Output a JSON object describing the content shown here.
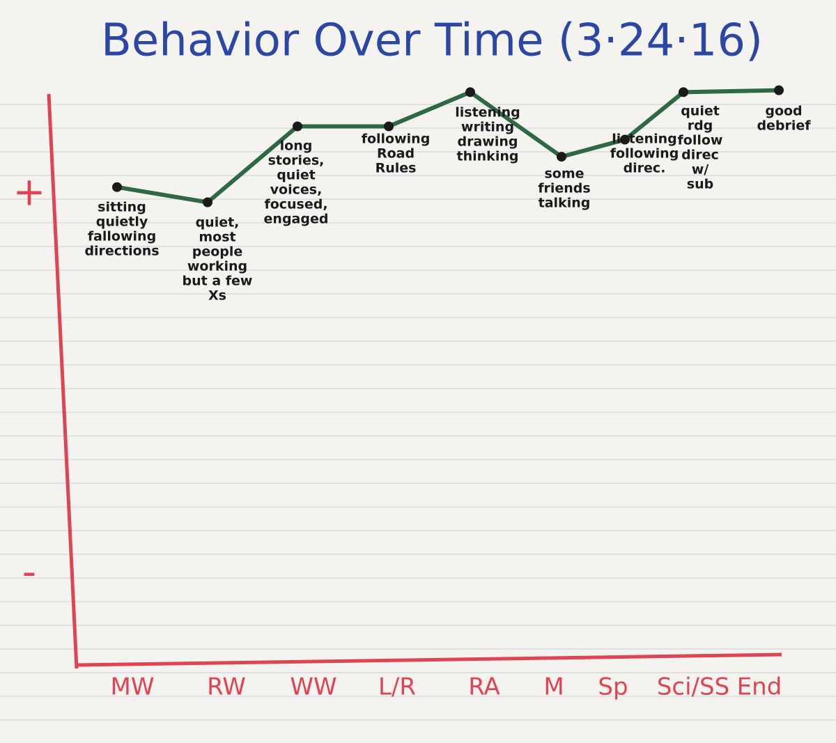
{
  "chart_data": {
    "type": "line",
    "title": "Behavior Over Time (3·24·16)",
    "categories": [
      "MW",
      "RW",
      "WW",
      "L/R",
      "RA",
      "M",
      "Sp",
      "Sci/SS",
      "End"
    ],
    "values": [
      1.04,
      0.96,
      1.36,
      1.36,
      1.54,
      1.2,
      1.29,
      1.54,
      1.55
    ],
    "color": "#2d6a43",
    "annotations": [
      [
        "sitting",
        "quietly",
        "fallowing",
        "directions"
      ],
      [
        "quiet,",
        "most",
        "people",
        "working",
        "but a few",
        "Xs"
      ],
      [
        "long",
        "stories,",
        "quiet",
        "voices,",
        "focused,",
        "engaged"
      ],
      [
        "following",
        "Road",
        "Rules"
      ],
      [
        "listening",
        "writing",
        "drawing",
        "thinking"
      ],
      [
        "some",
        "friends",
        "talking"
      ],
      [
        "listening",
        "following",
        "direc."
      ],
      [
        "quiet",
        "rdg",
        "follow",
        "direc",
        "w/",
        "sub"
      ],
      [
        "good",
        "debrief"
      ]
    ],
    "ylim": [
      -1.4,
      1.6
    ],
    "yticks": [
      {
        "value": 1,
        "label": "+"
      },
      {
        "value": -1,
        "label": "-"
      }
    ],
    "axis_color": "#e04452",
    "title_color": "#2b47a6"
  }
}
